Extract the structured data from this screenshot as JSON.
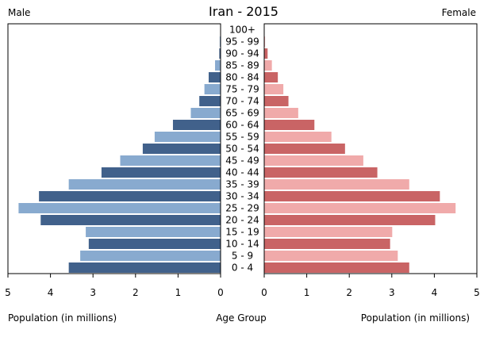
{
  "chart_data": {
    "type": "bar",
    "title": "Iran - 2015",
    "left_label": "Male",
    "right_label": "Female",
    "xlabel_left": "Population (in millions)",
    "xlabel_center": "Age Group",
    "xlabel_right": "Population (in millions)",
    "xlim": [
      0,
      5
    ],
    "ticks": [
      "5",
      "4",
      "3",
      "2",
      "1",
      "0"
    ],
    "ticks_right": [
      "0",
      "1",
      "2",
      "3",
      "4",
      "5"
    ],
    "categories": [
      "100+",
      "95 - 99",
      "90 - 94",
      "85 - 89",
      "80 - 84",
      "75 - 79",
      "70 - 74",
      "65 - 69",
      "60 - 64",
      "55 - 59",
      "50 - 54",
      "45 - 49",
      "40 - 44",
      "35 - 39",
      "30 - 34",
      "25 - 29",
      "20 - 24",
      "15 - 19",
      "10 - 14",
      "5 - 9",
      "0 - 4"
    ],
    "series": [
      {
        "name": "Male",
        "colors": [
          "#41618b",
          "#88aacf"
        ],
        "values": [
          0.005,
          0.02,
          0.03,
          0.13,
          0.28,
          0.38,
          0.5,
          0.7,
          1.12,
          1.55,
          1.83,
          2.36,
          2.8,
          3.57,
          4.27,
          4.75,
          4.23,
          3.17,
          3.1,
          3.3,
          3.57
        ]
      },
      {
        "name": "Female",
        "colors": [
          "#c96465",
          "#f0aaaa"
        ],
        "values": [
          0.005,
          0.02,
          0.08,
          0.18,
          0.32,
          0.45,
          0.57,
          0.8,
          1.18,
          1.58,
          1.9,
          2.33,
          2.66,
          3.41,
          4.13,
          4.5,
          4.02,
          3.01,
          2.96,
          3.14,
          3.41
        ]
      }
    ]
  }
}
